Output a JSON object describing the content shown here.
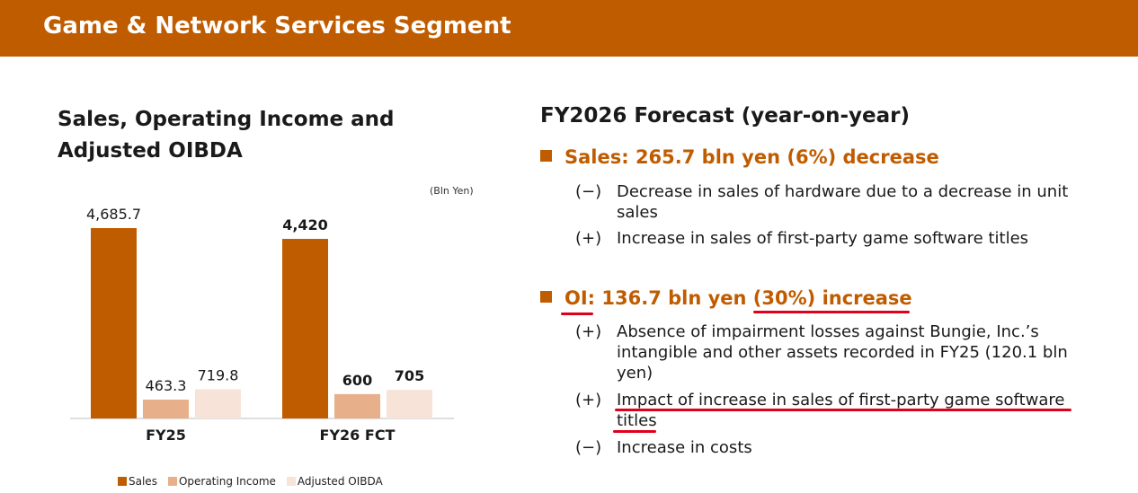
{
  "header": {
    "title": "Game & Network Services Segment"
  },
  "chart_section": {
    "title": "Sales, Operating Income and Adjusted OIBDA",
    "unit_note": "(Bln Yen)"
  },
  "chart_data": {
    "type": "bar",
    "title": "Sales, Operating Income and Adjusted OIBDA",
    "unit": "(Bln Yen)",
    "categories": [
      "FY25",
      "FY26 FCT"
    ],
    "series": [
      {
        "name": "Sales",
        "values": [
          4685.7,
          4420
        ],
        "labels": [
          "4,685.7",
          "4,420"
        ],
        "color": "#c05c00"
      },
      {
        "name": "Operating Income",
        "values": [
          463.3,
          600
        ],
        "labels": [
          "463.3",
          "600"
        ],
        "color": "#e8b08a"
      },
      {
        "name": "Adjusted OIBDA",
        "values": [
          719.8,
          705
        ],
        "labels": [
          "719.8",
          "705"
        ],
        "color": "#f7e3d8"
      }
    ],
    "bold_labels_category": "FY26 FCT",
    "legend_position": "bottom",
    "grid": false
  },
  "legend": [
    "Sales",
    "Operating Income",
    "Adjusted OIBDA"
  ],
  "forecast": {
    "title": "FY2026 Forecast (year-on-year)",
    "sales": {
      "head": "Sales: 265.7 bln yen (6%) decrease",
      "items": [
        {
          "sign": "(−)",
          "text": "Decrease in sales of hardware due to a decrease in unit sales"
        },
        {
          "sign": "(+)",
          "text": "Increase in sales of first-party game software titles"
        }
      ]
    },
    "oi": {
      "head": "OI: 136.7 bln yen (30%) increase",
      "items": [
        {
          "sign": "(+)",
          "text": "Absence of impairment losses against Bungie, Inc.’s intangible and other assets recorded in FY25 (120.1 bln yen)"
        },
        {
          "sign": "(+)",
          "text": "Impact of increase in sales of first-party game software titles"
        },
        {
          "sign": "(−)",
          "text": "Increase in costs"
        }
      ]
    }
  },
  "colors": {
    "brand": "#c05c00",
    "annotation": "#e0001b"
  }
}
